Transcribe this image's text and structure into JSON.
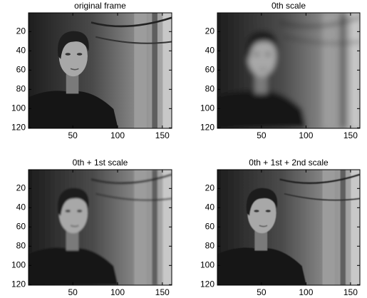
{
  "chart_data": [
    {
      "type": "image",
      "title": "original frame",
      "xlim": [
        0.5,
        160.5
      ],
      "ylim": [
        0.5,
        120.5
      ],
      "y_reversed": true,
      "xticks": [
        50,
        100,
        150
      ],
      "yticks": [
        20,
        40,
        60,
        80,
        100,
        120
      ]
    },
    {
      "type": "image",
      "title": "0th scale",
      "xlim": [
        0.5,
        160.5
      ],
      "ylim": [
        0.5,
        120.5
      ],
      "y_reversed": true,
      "xticks": [
        50,
        100,
        150
      ],
      "yticks": [
        20,
        40,
        60,
        80,
        100,
        120
      ]
    },
    {
      "type": "image",
      "title": "0th + 1st scale",
      "xlim": [
        0.5,
        160.5
      ],
      "ylim": [
        0.5,
        120.5
      ],
      "y_reversed": true,
      "xticks": [
        50,
        100,
        150
      ],
      "yticks": [
        20,
        40,
        60,
        80,
        100,
        120
      ]
    },
    {
      "type": "image",
      "title": "0th + 1st + 2nd scale",
      "xlim": [
        0.5,
        160.5
      ],
      "ylim": [
        0.5,
        120.5
      ],
      "y_reversed": true,
      "xticks": [
        50,
        100,
        150
      ],
      "yticks": [
        20,
        40,
        60,
        80,
        100,
        120
      ]
    }
  ]
}
